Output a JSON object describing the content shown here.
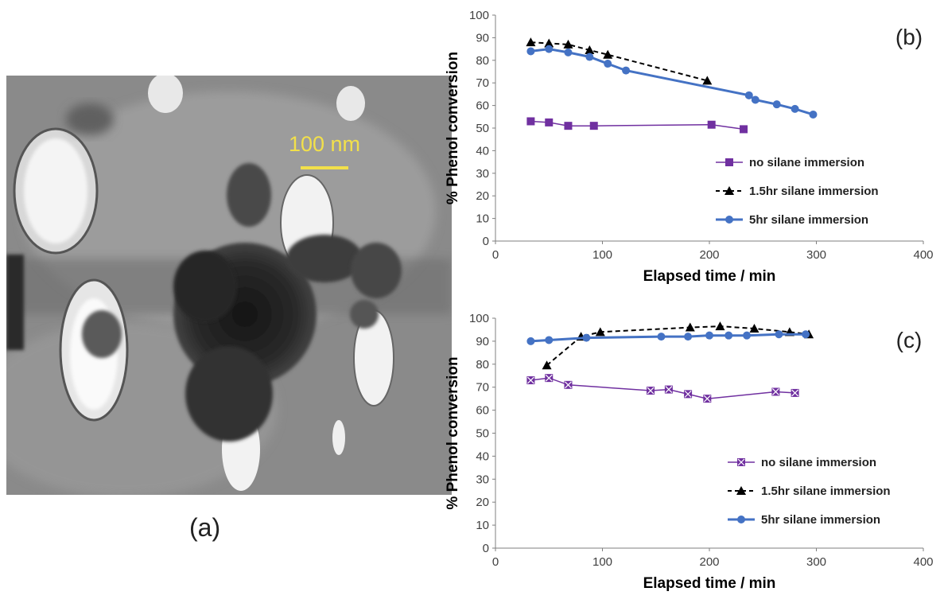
{
  "panel_a": {
    "label": "(a)",
    "scale_bar_text": "100 nm",
    "scale_bar_color": "#f2e04a"
  },
  "chart_data": [
    {
      "type": "line",
      "panel_label": "(b)",
      "xlabel": "Elapsed time / min",
      "ylabel": "% Phenol conversion",
      "xlim": [
        0,
        400
      ],
      "ylim": [
        0,
        100
      ],
      "xticks": [
        0,
        100,
        200,
        300,
        400
      ],
      "yticks": [
        0,
        10,
        20,
        30,
        40,
        50,
        60,
        70,
        80,
        90,
        100
      ],
      "grid": false,
      "legend_position": "right",
      "series": [
        {
          "name": "no silane immersion",
          "color": "#7030a0",
          "marker": "square",
          "line": "solid",
          "x": [
            33,
            50,
            68,
            92,
            202,
            232
          ],
          "y": [
            53,
            52.5,
            51,
            51,
            51.5,
            49.5
          ]
        },
        {
          "name": "1.5hr silane immersion",
          "color": "#000000",
          "marker": "triangle",
          "line": "dashed",
          "x": [
            33,
            50,
            68,
            88,
            105,
            198
          ],
          "y": [
            88,
            87.5,
            87,
            84.5,
            82.5,
            71
          ]
        },
        {
          "name": "5hr silane immersion",
          "color": "#4472c4",
          "marker": "circle",
          "line": "solid",
          "x": [
            33,
            50,
            68,
            88,
            105,
            122,
            237,
            243,
            263,
            280,
            297
          ],
          "y": [
            84,
            85,
            83.5,
            81.5,
            78.5,
            75.5,
            64.5,
            62.5,
            60.5,
            58.5,
            56
          ]
        }
      ]
    },
    {
      "type": "line",
      "panel_label": "(c)",
      "xlabel": "Elapsed time / min",
      "ylabel": "% Phenol conversion",
      "xlim": [
        0,
        400
      ],
      "ylim": [
        0,
        100
      ],
      "xticks": [
        0,
        100,
        200,
        300,
        400
      ],
      "yticks": [
        0,
        10,
        20,
        30,
        40,
        50,
        60,
        70,
        80,
        90,
        100
      ],
      "grid": false,
      "legend_position": "right",
      "series": [
        {
          "name": "no silane immersion",
          "color": "#7030a0",
          "marker": "x-square",
          "line": "solid",
          "x": [
            33,
            50,
            68,
            145,
            162,
            180,
            198,
            262,
            280
          ],
          "y": [
            73,
            74,
            71,
            68.5,
            69,
            67,
            65,
            68,
            67.5
          ]
        },
        {
          "name": "1.5hr silane immersion",
          "color": "#000000",
          "marker": "triangle",
          "line": "dashed",
          "x": [
            48,
            80,
            98,
            182,
            210,
            242,
            275,
            293
          ],
          "y": [
            79.5,
            92,
            94,
            96,
            96.5,
            95.5,
            94,
            93
          ]
        },
        {
          "name": "5hr silane immersion",
          "color": "#4472c4",
          "marker": "circle",
          "line": "solid",
          "x": [
            33,
            50,
            85,
            155,
            180,
            200,
            218,
            235,
            265,
            290
          ],
          "y": [
            90,
            90.5,
            91.5,
            92,
            92,
            92.5,
            92.5,
            92.5,
            93,
            93
          ]
        }
      ]
    }
  ]
}
